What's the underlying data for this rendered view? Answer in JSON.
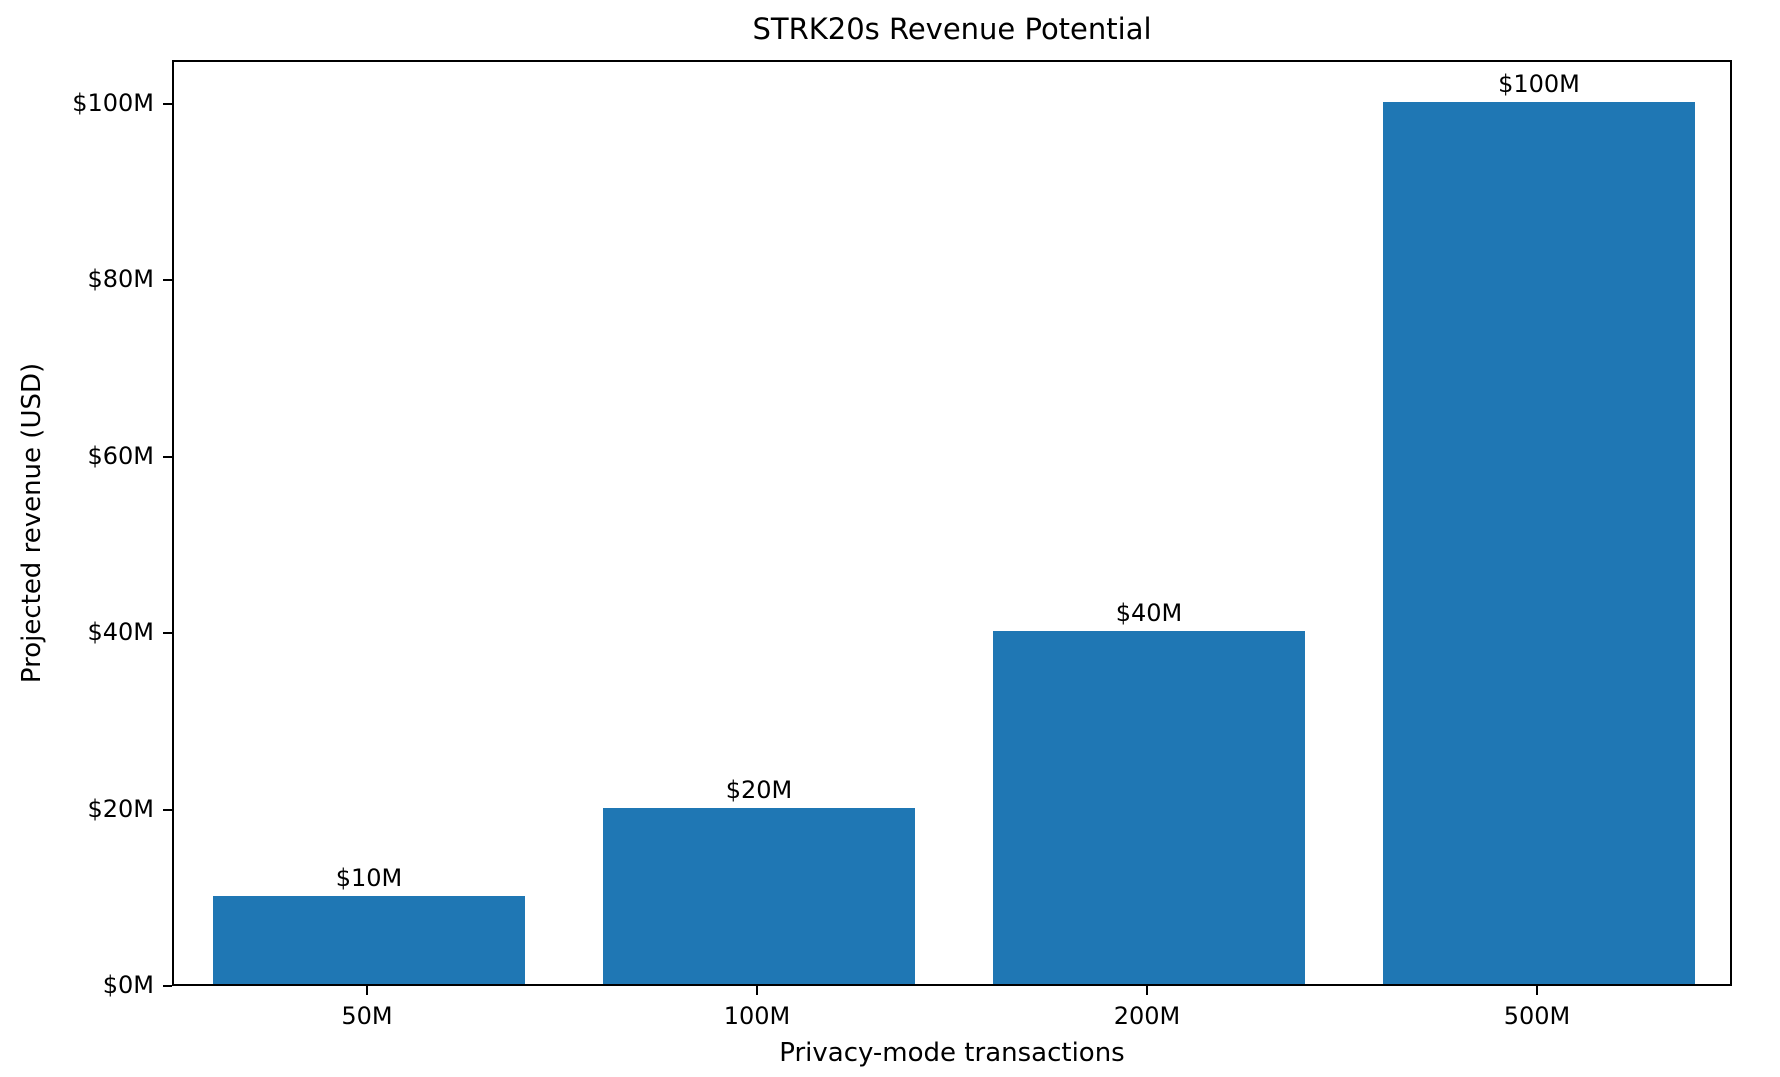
{
  "chart_data": {
    "type": "bar",
    "title": "STRK20s Revenue Potential",
    "xlabel": "Privacy-mode transactions",
    "ylabel": "Projected revenue (USD)",
    "categories": [
      "50M",
      "100M",
      "200M",
      "500M"
    ],
    "values": [
      10,
      20,
      40,
      100
    ],
    "value_labels": [
      "$10M",
      "$20M",
      "$40M",
      "$100M"
    ],
    "y_ticks": [
      0,
      20,
      40,
      60,
      80,
      100
    ],
    "y_tick_labels": [
      "$0M",
      "$20M",
      "$40M",
      "$60M",
      "$80M",
      "$100M"
    ],
    "ylim": [
      0,
      105
    ],
    "bar_width_fraction": 0.8,
    "bar_color": "#1f77b4",
    "grid": false,
    "legend_position": "none"
  }
}
